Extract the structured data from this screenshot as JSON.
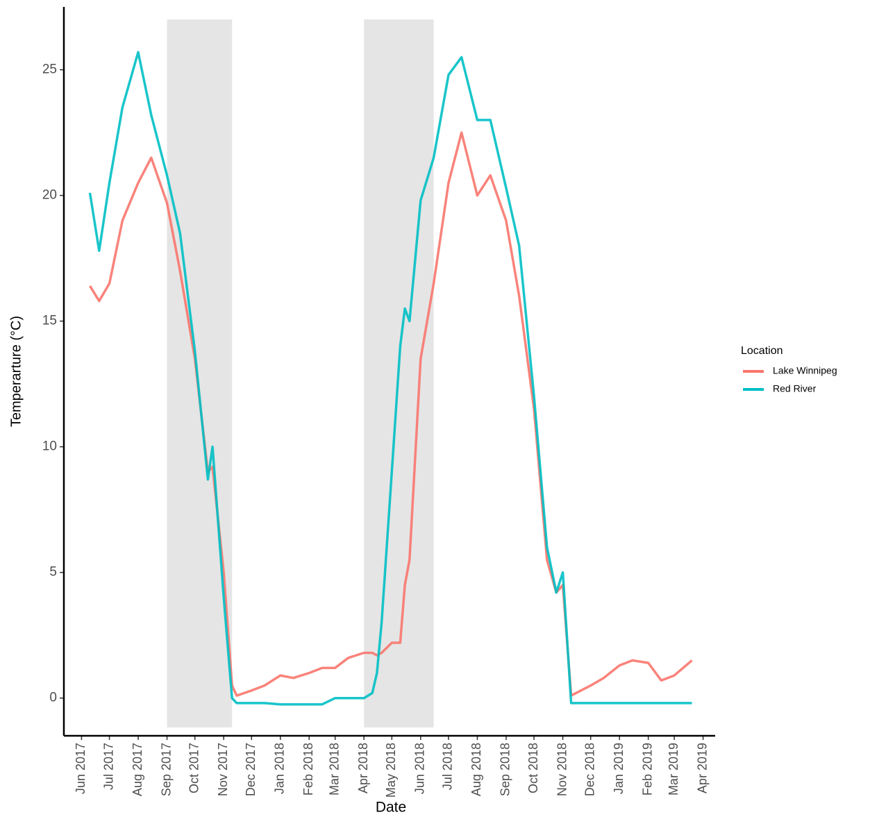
{
  "chart_data": {
    "type": "line",
    "x_label": "Date",
    "y_label": "Temperarture (°C)",
    "legend_title": "Location",
    "legend": "right",
    "x": [
      "2017-06-10",
      "2017-06-20",
      "2017-07-01",
      "2017-07-15",
      "2017-08-01",
      "2017-08-15",
      "2017-09-01",
      "2017-09-15",
      "2017-10-01",
      "2017-10-15",
      "2017-10-20",
      "2017-11-01",
      "2017-11-10",
      "2017-11-15",
      "2017-12-01",
      "2017-12-15",
      "2018-01-01",
      "2018-01-15",
      "2018-02-01",
      "2018-02-15",
      "2018-03-01",
      "2018-03-15",
      "2018-04-01",
      "2018-04-10",
      "2018-04-15",
      "2018-04-20",
      "2018-05-01",
      "2018-05-10",
      "2018-05-15",
      "2018-05-20",
      "2018-06-01",
      "2018-06-15",
      "2018-07-01",
      "2018-07-15",
      "2018-08-01",
      "2018-08-15",
      "2018-09-01",
      "2018-09-15",
      "2018-10-01",
      "2018-10-15",
      "2018-10-25",
      "2018-11-01",
      "2018-11-10",
      "2018-12-01",
      "2018-12-15",
      "2019-01-01",
      "2019-01-15",
      "2019-02-01",
      "2019-02-15",
      "2019-03-01",
      "2019-03-20"
    ],
    "series": [
      {
        "name": "Lake Winnipeg",
        "color": "#F8766D",
        "values": [
          16.4,
          15.8,
          16.5,
          19.0,
          20.5,
          21.5,
          19.7,
          17.0,
          13.5,
          9.0,
          9.2,
          5.0,
          0.5,
          0.1,
          0.3,
          0.5,
          0.9,
          0.8,
          1.0,
          1.2,
          1.2,
          1.6,
          1.8,
          1.8,
          1.7,
          1.8,
          2.2,
          2.2,
          4.5,
          5.5,
          13.5,
          16.5,
          20.5,
          22.5,
          20.0,
          20.8,
          19.0,
          16.0,
          11.5,
          5.5,
          4.2,
          4.5,
          0.1,
          0.5,
          0.8,
          1.3,
          1.5,
          1.4,
          0.7,
          0.9,
          1.5
        ]
      },
      {
        "name": "Red River",
        "color": "#00BFC4",
        "values": [
          20.1,
          17.8,
          20.5,
          23.5,
          25.7,
          23.2,
          20.8,
          18.5,
          13.8,
          8.7,
          10.0,
          4.0,
          0,
          -0.2,
          -0.2,
          -0.2,
          -0.25,
          -0.25,
          -0.25,
          -0.25,
          0,
          0,
          0,
          0.2,
          1.0,
          3.0,
          9.0,
          14,
          15.5,
          15,
          19.8,
          21.5,
          24.8,
          25.5,
          23.0,
          23.0,
          20.3,
          18.0,
          12.0,
          6.0,
          4.2,
          5.0,
          -0.2,
          -0.2,
          -0.2,
          -0.2,
          -0.2,
          -0.2,
          -0.2,
          -0.2,
          -0.2
        ]
      }
    ],
    "shaded_periods": [
      [
        "2017-09-01",
        "2017-11-10"
      ],
      [
        "2018-04-01",
        "2018-06-15"
      ]
    ],
    "xlim": [
      "2017-05-13",
      "2019-04-14"
    ],
    "xticks": [
      {
        "value": "2017-06-01",
        "label": "Jun 2017"
      },
      {
        "value": "2017-07-01",
        "label": "Jul 2017"
      },
      {
        "value": "2017-08-01",
        "label": "Aug 2017"
      },
      {
        "value": "2017-09-01",
        "label": "Sep 2017"
      },
      {
        "value": "2017-10-01",
        "label": "Oct 2017"
      },
      {
        "value": "2017-11-01",
        "label": "Nov 2017"
      },
      {
        "value": "2017-12-01",
        "label": "Dec 2017"
      },
      {
        "value": "2018-01-01",
        "label": "Jan 2018"
      },
      {
        "value": "2018-02-01",
        "label": "Feb 2018"
      },
      {
        "value": "2018-03-01",
        "label": "Mar 2018"
      },
      {
        "value": "2018-04-01",
        "label": "Apr 2018"
      },
      {
        "value": "2018-05-01",
        "label": "May 2018"
      },
      {
        "value": "2018-06-01",
        "label": "Jun 2018"
      },
      {
        "value": "2018-07-01",
        "label": "Jul 2018"
      },
      {
        "value": "2018-08-01",
        "label": "Aug 2018"
      },
      {
        "value": "2018-09-01",
        "label": "Sep 2018"
      },
      {
        "value": "2018-10-01",
        "label": "Oct 2018"
      },
      {
        "value": "2018-11-01",
        "label": "Nov 2018"
      },
      {
        "value": "2018-12-01",
        "label": "Dec 2018"
      },
      {
        "value": "2019-01-01",
        "label": "Jan 2019"
      },
      {
        "value": "2019-02-01",
        "label": "Feb 2019"
      },
      {
        "value": "2019-03-01",
        "label": "Mar 2019"
      },
      {
        "value": "2019-04-01",
        "label": "Apr 2019"
      }
    ],
    "ylim": [
      -1.5,
      27.5
    ],
    "yticks": [
      0,
      5,
      10,
      15,
      20,
      25
    ],
    "grid": false
  }
}
